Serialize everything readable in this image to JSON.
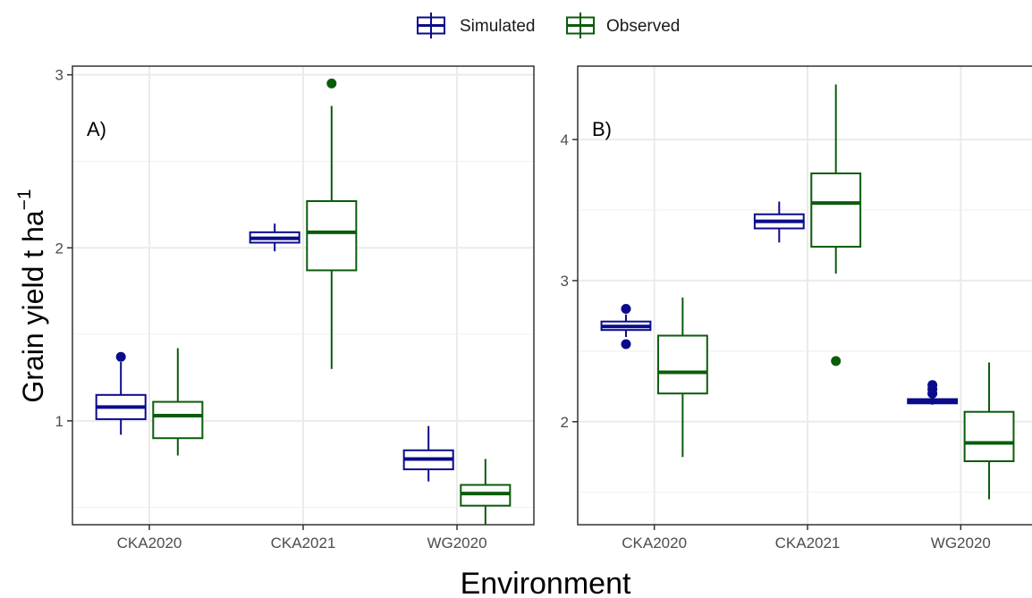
{
  "colors": {
    "simulated": "#0b0b8c",
    "observed": "#0a5c0a",
    "grid": "#ebebeb",
    "border": "#333333"
  },
  "chart_data": {
    "type": "boxplot",
    "legend": {
      "position": "top",
      "entries": [
        {
          "key": "sim",
          "label": "Simulated"
        },
        {
          "key": "obs",
          "label": "Observed"
        }
      ]
    },
    "xlabel": "Environment",
    "ylabel": {
      "main": "Grain yield t ha",
      "sup": "−1"
    },
    "categories": [
      "CKA2020",
      "CKA2021",
      "WG2020"
    ],
    "grid": true,
    "panels": [
      {
        "tag": "A)",
        "ylim": [
          0.4,
          3.05
        ],
        "yticks": [
          1,
          2,
          3
        ],
        "ytick_labels": [
          "1",
          "2",
          "3"
        ],
        "minor_grid": [
          1.5,
          2.5,
          0.5
        ],
        "boxes": [
          {
            "category": "CKA2020",
            "series": "sim",
            "lw": 0.92,
            "q1": 1.01,
            "med": 1.08,
            "q3": 1.15,
            "uw": 1.34,
            "outliers": [
              1.37
            ]
          },
          {
            "category": "CKA2020",
            "series": "obs",
            "lw": 0.8,
            "q1": 0.9,
            "med": 1.03,
            "q3": 1.11,
            "uw": 1.42,
            "outliers": []
          },
          {
            "category": "CKA2021",
            "series": "sim",
            "lw": 1.98,
            "q1": 2.03,
            "med": 2.055,
            "q3": 2.09,
            "uw": 2.14,
            "outliers": []
          },
          {
            "category": "CKA2021",
            "series": "obs",
            "lw": 1.3,
            "q1": 1.87,
            "med": 2.09,
            "q3": 2.27,
            "uw": 2.82,
            "outliers": [
              2.95
            ]
          },
          {
            "category": "WG2020",
            "series": "sim",
            "lw": 0.65,
            "q1": 0.72,
            "med": 0.78,
            "q3": 0.83,
            "uw": 0.97,
            "outliers": []
          },
          {
            "category": "WG2020",
            "series": "obs",
            "lw": 0.4,
            "q1": 0.51,
            "med": 0.58,
            "q3": 0.63,
            "uw": 0.78,
            "outliers": []
          }
        ]
      },
      {
        "tag": "B)",
        "ylim": [
          1.27,
          4.52
        ],
        "yticks": [
          2,
          3,
          4
        ],
        "ytick_labels": [
          "2",
          "3",
          "4"
        ],
        "minor_grid": [
          1.5,
          2.5,
          3.5
        ],
        "boxes": [
          {
            "category": "CKA2020",
            "series": "sim",
            "lw": 2.6,
            "q1": 2.65,
            "med": 2.675,
            "q3": 2.71,
            "uw": 2.76,
            "outliers": [
              2.55,
              2.8
            ]
          },
          {
            "category": "CKA2020",
            "series": "obs",
            "lw": 1.75,
            "q1": 2.2,
            "med": 2.35,
            "q3": 2.61,
            "uw": 2.88,
            "outliers": []
          },
          {
            "category": "CKA2021",
            "series": "sim",
            "lw": 3.27,
            "q1": 3.37,
            "med": 3.42,
            "q3": 3.47,
            "uw": 3.56,
            "outliers": []
          },
          {
            "category": "CKA2021",
            "series": "obs",
            "lw": 3.05,
            "q1": 3.24,
            "med": 3.55,
            "q3": 3.76,
            "uw": 4.39,
            "outliers": [
              2.43
            ]
          },
          {
            "category": "WG2020",
            "series": "sim",
            "lw": 2.12,
            "q1": 2.13,
            "med": 2.145,
            "q3": 2.16,
            "uw": 2.18,
            "outliers": [
              2.2,
              2.23,
              2.26
            ]
          },
          {
            "category": "WG2020",
            "series": "obs",
            "lw": 1.45,
            "q1": 1.72,
            "med": 1.85,
            "q3": 2.07,
            "uw": 2.42,
            "outliers": []
          }
        ]
      }
    ]
  }
}
